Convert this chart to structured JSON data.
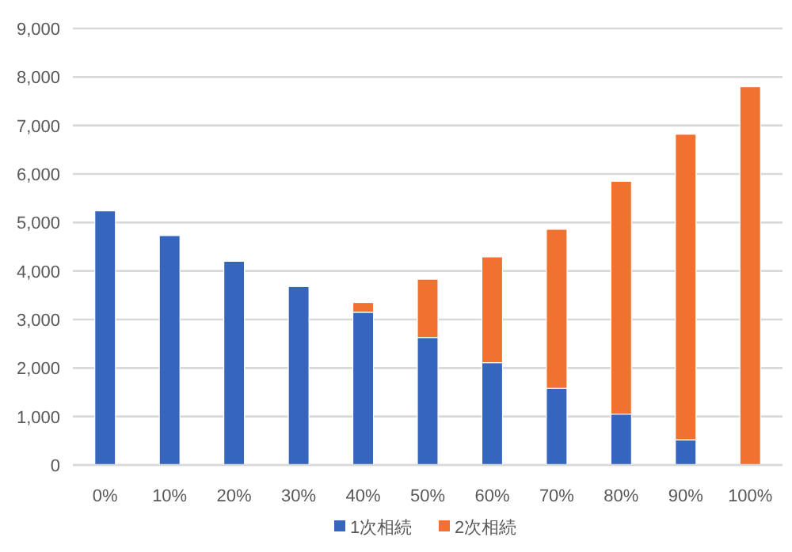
{
  "chart_data": {
    "type": "bar",
    "stacked": true,
    "categories": [
      "0%",
      "10%",
      "20%",
      "30%",
      "40%",
      "50%",
      "60%",
      "70%",
      "80%",
      "90%",
      "100%"
    ],
    "series": [
      {
        "name": "1次相続",
        "color": "#3565bd",
        "values": [
          5240,
          4730,
          4200,
          3680,
          3150,
          2630,
          2110,
          1580,
          1050,
          520,
          null
        ]
      },
      {
        "name": "2次相続",
        "color": "#f07130",
        "values": [
          null,
          null,
          null,
          null,
          200,
          1200,
          2180,
          3280,
          4800,
          6300,
          7800
        ]
      }
    ],
    "ylim": [
      0,
      9000
    ],
    "yticks": [
      {
        "value": 0,
        "label": "0"
      },
      {
        "value": 1000,
        "label": "1,000"
      },
      {
        "value": 2000,
        "label": "2,000"
      },
      {
        "value": 3000,
        "label": "3,000"
      },
      {
        "value": 4000,
        "label": "4,000"
      },
      {
        "value": 5000,
        "label": "5,000"
      },
      {
        "value": 6000,
        "label": "6,000"
      },
      {
        "value": 7000,
        "label": "7,000"
      },
      {
        "value": 8000,
        "label": "8,000"
      },
      {
        "value": 9000,
        "label": "9,000"
      }
    ],
    "grid": "y",
    "legend": "bottom"
  }
}
